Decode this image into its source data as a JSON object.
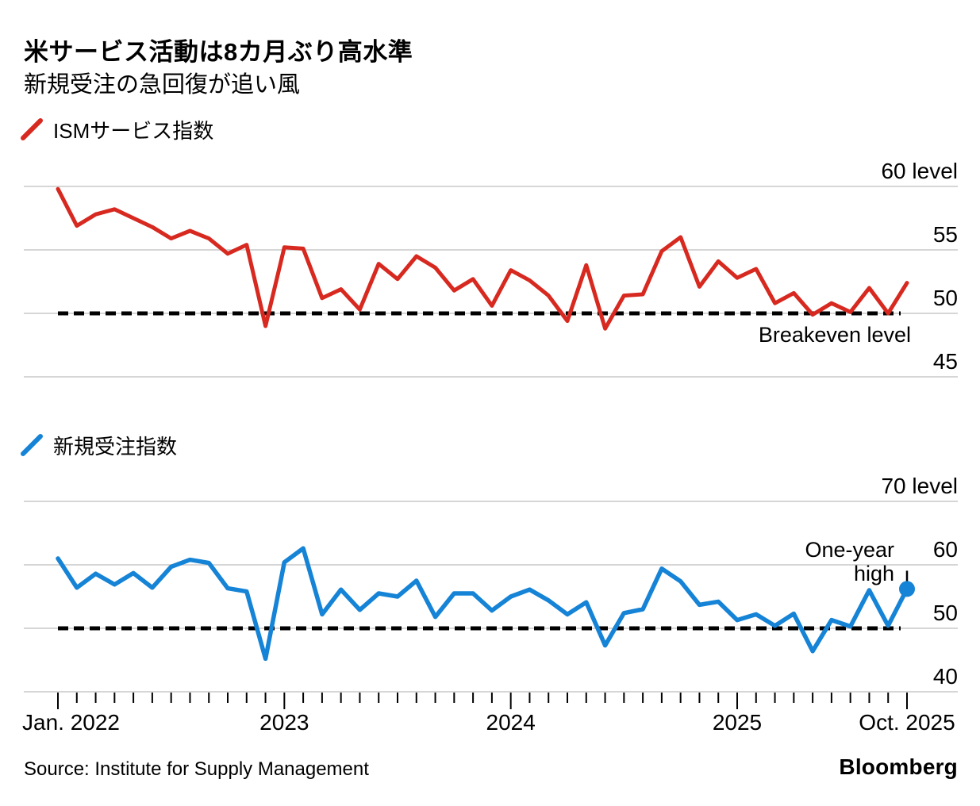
{
  "title": "米サービス活動は8カ月ぶり高水準",
  "subtitle": "新規受注の急回復が追い風",
  "colors": {
    "series1": "#d7291f",
    "series2": "#1583d6",
    "grid": "#c8c8c8",
    "dashed": "#000000",
    "text": "#000000",
    "background": "#ffffff"
  },
  "period": {
    "start": "Jan 2022",
    "end": "Oct 2025",
    "frequency": "monthly",
    "points": 46
  },
  "x_axis": {
    "tick_labels": [
      {
        "label": "Jan. 2022",
        "month_index": 0,
        "align": "left"
      },
      {
        "label": "2023",
        "month_index": 12,
        "align": "center"
      },
      {
        "label": "2024",
        "month_index": 24,
        "align": "center"
      },
      {
        "label": "2025",
        "month_index": 36,
        "align": "center"
      },
      {
        "label": "Oct. 2025",
        "month_index": 45,
        "align": "center"
      }
    ]
  },
  "chart_data": [
    {
      "type": "line",
      "series_name": "ISMサービス指数",
      "color_key": "series1",
      "y_axis": {
        "ticks": [
          60,
          55,
          50,
          45
        ],
        "tick_labels": [
          "60 level",
          "55",
          "50",
          "45"
        ]
      },
      "reference_line": {
        "value": 50,
        "label": "Breakeven level",
        "style": "dashed"
      },
      "values": [
        59.8,
        56.9,
        57.8,
        58.2,
        57.5,
        56.8,
        55.9,
        56.5,
        55.9,
        54.7,
        55.4,
        49.0,
        55.2,
        55.1,
        51.2,
        51.9,
        50.3,
        53.9,
        52.7,
        54.5,
        53.6,
        51.8,
        52.7,
        50.6,
        53.4,
        52.6,
        51.4,
        49.4,
        53.8,
        48.8,
        51.4,
        51.5,
        54.9,
        56.0,
        52.1,
        54.1,
        52.8,
        53.5,
        50.8,
        51.6,
        49.9,
        50.8,
        50.1,
        52.0,
        50.0,
        52.4
      ]
    },
    {
      "type": "line",
      "series_name": "新規受注指数",
      "color_key": "series2",
      "y_axis": {
        "ticks": [
          70,
          60,
          50,
          40
        ],
        "tick_labels": [
          "70 level",
          "60",
          "50",
          "40"
        ]
      },
      "reference_line": {
        "value": 50,
        "label": null,
        "style": "dashed"
      },
      "annotation": {
        "lines": [
          "One-year",
          "high"
        ],
        "applies_to": "last_point"
      },
      "end_marker": "dot",
      "values": [
        61.0,
        56.4,
        58.6,
        56.9,
        58.7,
        56.4,
        59.7,
        60.8,
        60.3,
        56.3,
        55.8,
        45.2,
        60.4,
        62.6,
        52.2,
        56.1,
        52.9,
        55.5,
        55.0,
        57.5,
        51.8,
        55.5,
        55.5,
        52.8,
        55.0,
        56.1,
        54.4,
        52.2,
        54.1,
        47.3,
        52.4,
        53.0,
        59.4,
        57.4,
        53.7,
        54.2,
        51.3,
        52.2,
        50.4,
        52.3,
        46.4,
        51.3,
        50.3,
        56.0,
        50.4,
        56.2
      ]
    }
  ],
  "footer": {
    "source": "Source: Institute for Supply Management",
    "brand": "Bloomberg"
  }
}
